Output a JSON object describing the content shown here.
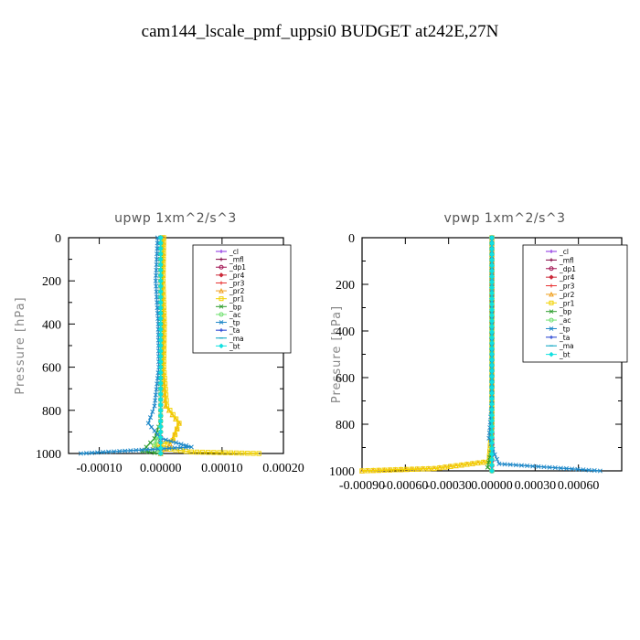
{
  "page": {
    "title": "cam144_lscale_pmf_uppsi0  BUDGET at242E,27N"
  },
  "chart_data": [
    {
      "type": "line",
      "title": "upwp   1xm^2/s^3",
      "ylabel": "Pressure [hPa]",
      "xlabel": "",
      "xlim": [
        -0.00015,
        0.0002
      ],
      "ylim": [
        1000,
        0
      ],
      "xticks": [
        {
          "value": -0.0001,
          "label": "-0.00010"
        },
        {
          "value": 0.0,
          "label": "0.00000"
        },
        {
          "value": 0.0001,
          "label": "0.00010"
        },
        {
          "value": 0.0002,
          "label": "0.00020"
        }
      ],
      "yticks": [
        {
          "value": 0,
          "label": "0"
        },
        {
          "value": 200,
          "label": "200"
        },
        {
          "value": 400,
          "label": "400"
        },
        {
          "value": 600,
          "label": "600"
        },
        {
          "value": 800,
          "label": "800"
        },
        {
          "value": 1000,
          "label": "1000"
        }
      ],
      "legend_position": "top-right",
      "legend": [
        "_cl",
        "_mfl",
        "_dp1",
        "_pr4",
        "_pr3",
        "_pr2",
        "_pr1",
        "_bp",
        "_ac",
        "_tp",
        "_ta",
        "_ma",
        "_bt"
      ],
      "series": [
        {
          "name": "_cl",
          "color": "#8a2be2",
          "marker": "plus",
          "points": [
            [
              0.0,
              0
            ],
            [
              0.0,
              200
            ],
            [
              0.0,
              400
            ],
            [
              0.0,
              600
            ],
            [
              0.0,
              800
            ],
            [
              0.0,
              1000
            ]
          ]
        },
        {
          "name": "_mfl",
          "color": "#800040",
          "marker": "plus",
          "points": [
            [
              0.0,
              0
            ],
            [
              0.0,
              200
            ],
            [
              0.0,
              400
            ],
            [
              0.0,
              600
            ],
            [
              0.0,
              800
            ],
            [
              0.0,
              1000
            ]
          ]
        },
        {
          "name": "_dp1",
          "color": "#a01050",
          "marker": "circle",
          "points": [
            [
              0.0,
              0
            ],
            [
              0.0,
              250
            ],
            [
              0.0,
              500
            ],
            [
              0.0,
              750
            ],
            [
              0.0,
              1000
            ]
          ]
        },
        {
          "name": "_pr4",
          "color": "#cc2a3a",
          "marker": "diamond",
          "points": [
            [
              0.0,
              0
            ],
            [
              0.0,
              500
            ],
            [
              0.0,
              1000
            ]
          ]
        },
        {
          "name": "_pr3",
          "color": "#e83030",
          "marker": "plus",
          "points": [
            [
              0.0,
              0
            ],
            [
              0.0,
              500
            ],
            [
              0.0,
              1000
            ]
          ]
        },
        {
          "name": "_pr2",
          "color": "#f0a020",
          "marker": "triangle",
          "points": [
            [
              5e-06,
              0
            ],
            [
              3e-06,
              200
            ],
            [
              5e-06,
              400
            ],
            [
              4e-06,
              600
            ],
            [
              8e-06,
              780
            ],
            [
              3e-05,
              860
            ],
            [
              2e-05,
              930
            ],
            [
              1e-05,
              980
            ],
            [
              0.0,
              1000
            ]
          ]
        },
        {
          "name": "_pr1",
          "color": "#f2d200",
          "marker": "square",
          "points": [
            [
              5e-06,
              0
            ],
            [
              4e-06,
              200
            ],
            [
              6e-06,
              400
            ],
            [
              5e-06,
              600
            ],
            [
              1e-05,
              780
            ],
            [
              3e-05,
              860
            ],
            [
              2e-05,
              940
            ],
            [
              -1e-05,
              970
            ],
            [
              5e-05,
              993
            ],
            [
              0.00016,
              1000
            ]
          ]
        },
        {
          "name": "_bp",
          "color": "#2e9e2e",
          "marker": "x",
          "points": [
            [
              0.0,
              0
            ],
            [
              0.0,
              500
            ],
            [
              0.0,
              850
            ],
            [
              -1e-05,
              930
            ],
            [
              -3e-05,
              990
            ],
            [
              0.0,
              1000
            ]
          ]
        },
        {
          "name": "_ac",
          "color": "#70e070",
          "marker": "circle",
          "points": [
            [
              0.0,
              0
            ],
            [
              0.0,
              500
            ],
            [
              0.0,
              900
            ],
            [
              -1e-05,
              960
            ],
            [
              0.0,
              1000
            ]
          ]
        },
        {
          "name": "_tp",
          "color": "#1e88c8",
          "marker": "x",
          "points": [
            [
              -5e-06,
              0
            ],
            [
              -8e-06,
              200
            ],
            [
              -4e-06,
              400
            ],
            [
              -3e-06,
              600
            ],
            [
              -1e-05,
              780
            ],
            [
              -2e-05,
              860
            ],
            [
              0.0,
              930
            ],
            [
              5e-05,
              970
            ],
            [
              -0.00013,
              1000
            ]
          ]
        },
        {
          "name": "_ta",
          "color": "#1a3ad0",
          "marker": "plus",
          "points": [
            [
              0.0,
              0
            ],
            [
              0.0,
              500
            ],
            [
              0.0,
              1000
            ]
          ]
        },
        {
          "name": "_ma",
          "color": "#00a0c0",
          "marker": "dash",
          "points": [
            [
              0.0,
              0
            ],
            [
              0.0,
              500
            ],
            [
              0.0,
              1000
            ]
          ]
        },
        {
          "name": "_bt",
          "color": "#10e0e0",
          "marker": "diamond",
          "points": [
            [
              0.0,
              0
            ],
            [
              0.0,
              500
            ],
            [
              0.0,
              1000
            ]
          ]
        }
      ]
    },
    {
      "type": "line",
      "title": "vpwp   1xm^2/s^3",
      "ylabel": "Pressure [hPa]",
      "xlabel": "",
      "xlim": [
        -0.0009,
        0.0009
      ],
      "ylim": [
        1000,
        0
      ],
      "xticks": [
        {
          "value": -0.0009,
          "label": "-0.00090"
        },
        {
          "value": -0.0006,
          "label": "-0.00060"
        },
        {
          "value": -0.0003,
          "label": "-0.00030"
        },
        {
          "value": 0.0,
          "label": "0.00000"
        },
        {
          "value": 0.0003,
          "label": "0.00030"
        },
        {
          "value": 0.0006,
          "label": "0.00060"
        }
      ],
      "yticks": [
        {
          "value": 0,
          "label": "0"
        },
        {
          "value": 200,
          "label": "200"
        },
        {
          "value": 400,
          "label": "400"
        },
        {
          "value": 600,
          "label": "600"
        },
        {
          "value": 800,
          "label": "800"
        },
        {
          "value": 1000,
          "label": "1000"
        }
      ],
      "legend_position": "top-right",
      "legend": [
        "_cl",
        "_mfl",
        "_dp1",
        "_pr4",
        "_pr3",
        "_pr2",
        "_pr1",
        "_bp",
        "_ac",
        "_tp",
        "_ta",
        "_ma",
        "_bt"
      ],
      "series": [
        {
          "name": "_cl",
          "color": "#8a2be2",
          "marker": "plus",
          "points": [
            [
              0.0,
              0
            ],
            [
              0.0,
              250
            ],
            [
              0.0,
              500
            ],
            [
              0.0,
              750
            ],
            [
              0.0,
              1000
            ]
          ]
        },
        {
          "name": "_mfl",
          "color": "#800040",
          "marker": "plus",
          "points": [
            [
              0.0,
              0
            ],
            [
              0.0,
              250
            ],
            [
              0.0,
              500
            ],
            [
              0.0,
              750
            ],
            [
              0.0,
              1000
            ]
          ]
        },
        {
          "name": "_dp1",
          "color": "#a01050",
          "marker": "circle",
          "points": [
            [
              0.0,
              0
            ],
            [
              0.0,
              250
            ],
            [
              0.0,
              500
            ],
            [
              0.0,
              750
            ],
            [
              0.0,
              1000
            ]
          ]
        },
        {
          "name": "_pr4",
          "color": "#cc2a3a",
          "marker": "diamond",
          "points": [
            [
              0.0,
              0
            ],
            [
              0.0,
              500
            ],
            [
              0.0,
              1000
            ]
          ]
        },
        {
          "name": "_pr3",
          "color": "#e83030",
          "marker": "plus",
          "points": [
            [
              0.0,
              0
            ],
            [
              0.0,
              500
            ],
            [
              0.0,
              1000
            ]
          ]
        },
        {
          "name": "_pr2",
          "color": "#f0a020",
          "marker": "triangle",
          "points": [
            [
              0.0,
              0
            ],
            [
              0.0,
              800
            ],
            [
              -2e-05,
              960
            ],
            [
              -0.0004,
              990
            ],
            [
              -0.0009,
              1000
            ]
          ]
        },
        {
          "name": "_pr1",
          "color": "#f2d200",
          "marker": "square",
          "points": [
            [
              0.0,
              0
            ],
            [
              0.0,
              800
            ],
            [
              -2e-05,
              960
            ],
            [
              -0.0004,
              990
            ],
            [
              -0.0009,
              1000
            ]
          ]
        },
        {
          "name": "_bp",
          "color": "#2e9e2e",
          "marker": "x",
          "points": [
            [
              0.0,
              0
            ],
            [
              0.0,
              900
            ],
            [
              -3e-05,
              985
            ],
            [
              0.0,
              1000
            ]
          ]
        },
        {
          "name": "_ac",
          "color": "#70e070",
          "marker": "circle",
          "points": [
            [
              0.0,
              0
            ],
            [
              0.0,
              900
            ],
            [
              0.0,
              1000
            ]
          ]
        },
        {
          "name": "_tp",
          "color": "#1e88c8",
          "marker": "x",
          "points": [
            [
              0.0,
              0
            ],
            [
              0.0,
              700
            ],
            [
              -2e-05,
              860
            ],
            [
              2e-05,
              930
            ],
            [
              5e-05,
              970
            ],
            [
              0.00075,
              1000
            ]
          ]
        },
        {
          "name": "_ta",
          "color": "#1a3ad0",
          "marker": "plus",
          "points": [
            [
              0.0,
              0
            ],
            [
              0.0,
              500
            ],
            [
              0.0,
              1000
            ]
          ]
        },
        {
          "name": "_ma",
          "color": "#00a0c0",
          "marker": "dash",
          "points": [
            [
              0.0,
              0
            ],
            [
              0.0,
              500
            ],
            [
              0.0,
              1000
            ]
          ]
        },
        {
          "name": "_bt",
          "color": "#10e0e0",
          "marker": "diamond",
          "points": [
            [
              0.0,
              0
            ],
            [
              0.0,
              500
            ],
            [
              0.0,
              1000
            ]
          ]
        }
      ]
    }
  ]
}
